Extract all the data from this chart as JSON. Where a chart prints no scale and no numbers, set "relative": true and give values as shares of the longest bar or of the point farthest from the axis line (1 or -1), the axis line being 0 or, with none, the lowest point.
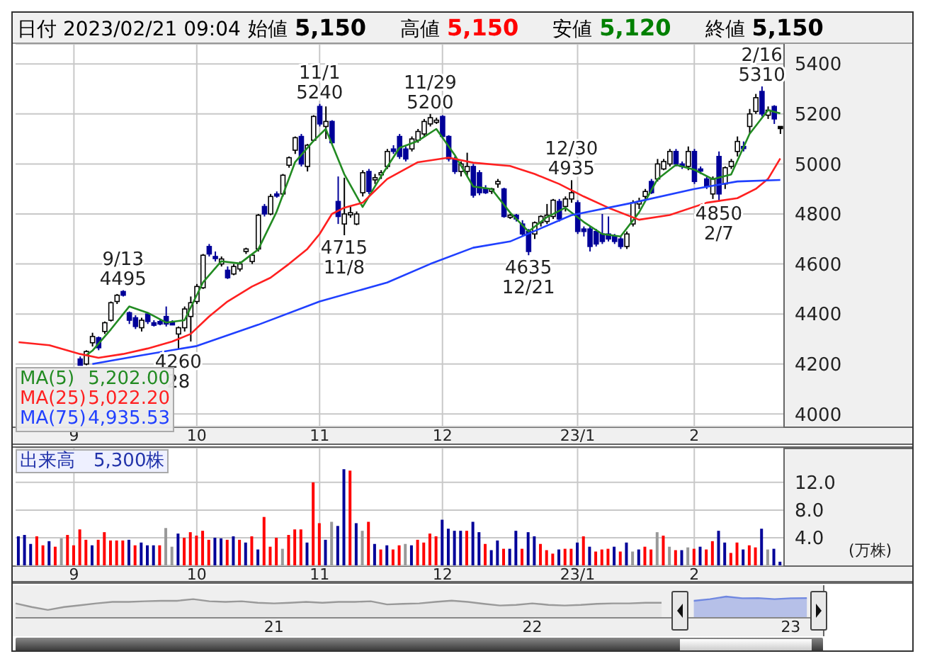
{
  "chart_data": [
    {
      "type": "candlestick",
      "title": "日付 2023/02/21 09:04",
      "subtitle": "始値 5,150 高値 5,150 安値 5,120 終値 5,150",
      "categories": [
        null,
        null,
        null,
        null,
        null,
        null,
        null,
        null,
        null,
        "9",
        null,
        null,
        null,
        null,
        null,
        null,
        null,
        null,
        null,
        null,
        null,
        null,
        null,
        null,
        null,
        null,
        null,
        null,
        null,
        "10",
        null,
        null,
        null,
        null,
        null,
        null,
        null,
        null,
        null,
        null,
        null,
        null,
        null,
        null,
        null,
        null,
        null,
        null,
        null,
        "11",
        null,
        null,
        null,
        null,
        null,
        null,
        null,
        null,
        null,
        null,
        null,
        null,
        null,
        null,
        null,
        null,
        null,
        null,
        null,
        "12",
        null,
        null,
        null,
        null,
        null,
        null,
        null,
        null,
        null,
        null,
        null,
        null,
        null,
        null,
        null,
        null,
        null,
        null,
        null,
        null,
        null,
        "23/1",
        null,
        null,
        null,
        null,
        null,
        null,
        null,
        null,
        null,
        null,
        null,
        null,
        null,
        null,
        null,
        null,
        null,
        null,
        "2",
        null,
        null,
        null,
        null,
        null,
        null,
        null,
        null,
        null,
        null,
        null,
        null,
        null,
        null
      ],
      "ohlc": [
        null,
        null,
        null,
        null,
        null,
        null,
        null,
        null,
        null,
        null,
        [
          4220,
          4230,
          4195,
          4195
        ],
        [
          4200,
          4255,
          4195,
          4250
        ],
        [
          4285,
          4325,
          4270,
          4310
        ],
        [
          4305,
          4310,
          4255,
          4265
        ],
        [
          4330,
          4370,
          4320,
          4365
        ],
        [
          4375,
          4450,
          4370,
          4445
        ],
        [
          4450,
          4480,
          4440,
          4475
        ],
        [
          4490,
          4495,
          4470,
          4475
        ],
        [
          4405,
          4410,
          4360,
          4375
        ],
        [
          4385,
          4395,
          4340,
          4350
        ],
        [
          4345,
          4385,
          4330,
          4375
        ],
        [
          4400,
          4405,
          4360,
          4370
        ],
        [
          4365,
          4375,
          4350,
          4355
        ],
        [
          4370,
          4380,
          4355,
          4360
        ],
        [
          4390,
          4430,
          4350,
          4360
        ],
        [
          4365,
          4375,
          4355,
          4360
        ],
        [
          4320,
          4350,
          4260,
          4345
        ],
        [
          4345,
          4430,
          4330,
          4420
        ],
        [
          4390,
          4470,
          4290,
          4445
        ],
        [
          4450,
          4520,
          4440,
          4510
        ],
        [
          4505,
          4640,
          4500,
          4635
        ],
        [
          4670,
          4680,
          4630,
          4640
        ],
        [
          4630,
          4650,
          4610,
          4625
        ],
        [
          4600,
          4630,
          4590,
          4620
        ],
        [
          4575,
          4590,
          4540,
          4545
        ],
        [
          4560,
          4600,
          4555,
          4590
        ],
        [
          4580,
          4610,
          4570,
          4600
        ],
        [
          4650,
          4665,
          4640,
          4660
        ],
        [
          4610,
          4640,
          4600,
          4635
        ],
        [
          4660,
          4800,
          4650,
          4795
        ],
        [
          4830,
          4840,
          4790,
          4800
        ],
        [
          4800,
          4880,
          4795,
          4870
        ],
        [
          4880,
          4890,
          4865,
          4875
        ],
        [
          4880,
          4960,
          4870,
          4955
        ],
        [
          4995,
          5030,
          4985,
          5025
        ],
        [
          5055,
          5110,
          5040,
          5105
        ],
        [
          5110,
          5120,
          4990,
          5000
        ],
        [
          4990,
          5080,
          4970,
          5075
        ],
        [
          5095,
          5195,
          5090,
          5190
        ],
        [
          5230,
          5240,
          5150,
          5160
        ],
        [
          5150,
          5230,
          5100,
          5170
        ],
        [
          5170,
          5175,
          5080,
          5085
        ],
        [
          4850,
          4950,
          4760,
          4790
        ],
        [
          4760,
          4945,
          4715,
          4800
        ],
        [
          4800,
          4830,
          4785,
          4805
        ],
        [
          4760,
          4810,
          4755,
          4800
        ],
        [
          4885,
          4975,
          4870,
          4965
        ],
        [
          4970,
          4980,
          4880,
          4890
        ],
        [
          4940,
          4960,
          4920,
          4945
        ],
        [
          4960,
          4975,
          4940,
          4965
        ],
        [
          4990,
          5060,
          4980,
          5050
        ],
        [
          5060,
          5075,
          5040,
          5050
        ],
        [
          5110,
          5120,
          5020,
          5030
        ],
        [
          5060,
          5070,
          5010,
          5020
        ],
        [
          5060,
          5110,
          5050,
          5100
        ],
        [
          5095,
          5140,
          5085,
          5130
        ],
        [
          5120,
          5180,
          5110,
          5170
        ],
        [
          5160,
          5200,
          5150,
          5185
        ],
        [
          5170,
          5185,
          5160,
          5175
        ],
        [
          5190,
          5195,
          5100,
          5110
        ],
        [
          5110,
          5115,
          5010,
          5020
        ],
        [
          5020,
          5030,
          4960,
          4970
        ],
        [
          4970,
          5010,
          4950,
          5000
        ],
        [
          4970,
          5045,
          4950,
          4990
        ],
        [
          4990,
          5000,
          4865,
          4875
        ],
        [
          4965,
          4975,
          4875,
          4885
        ],
        [
          4900,
          4915,
          4880,
          4885
        ],
        [
          4890,
          4905,
          4880,
          4900
        ],
        [
          4920,
          4940,
          4905,
          4930
        ],
        [
          4900,
          4905,
          4785,
          4790
        ],
        [
          4790,
          4800,
          4780,
          4795
        ],
        [
          4795,
          4800,
          4770,
          4780
        ],
        [
          4760,
          4775,
          4710,
          4720
        ],
        [
          4730,
          4740,
          4635,
          4650
        ],
        [
          4720,
          4770,
          4700,
          4765
        ],
        [
          4765,
          4795,
          4750,
          4790
        ],
        [
          4770,
          4840,
          4760,
          4795
        ],
        [
          4790,
          4860,
          4780,
          4855
        ],
        [
          4850,
          4860,
          4770,
          4780
        ],
        [
          4830,
          4870,
          4810,
          4860
        ],
        [
          4860,
          4935,
          4845,
          4885
        ],
        [
          4845,
          4855,
          4720,
          4730
        ],
        [
          4740,
          4750,
          4710,
          4730
        ],
        [
          4740,
          4750,
          4650,
          4670
        ],
        [
          4730,
          4740,
          4670,
          4680
        ],
        [
          4720,
          4800,
          4680,
          4690
        ],
        [
          4720,
          4790,
          4690,
          4700
        ],
        [
          4710,
          4720,
          4680,
          4690
        ],
        [
          4700,
          4710,
          4660,
          4670
        ],
        [
          4670,
          4730,
          4660,
          4720
        ],
        [
          4760,
          4855,
          4750,
          4845
        ],
        [
          4840,
          4865,
          4820,
          4850
        ],
        [
          4870,
          4900,
          4860,
          4890
        ],
        [
          4930,
          4940,
          4880,
          4885
        ],
        [
          4940,
          5020,
          4930,
          5000
        ],
        [
          4980,
          5020,
          4975,
          5010
        ],
        [
          5000,
          5060,
          4990,
          5050
        ],
        [
          5050,
          5060,
          4990,
          5000
        ],
        [
          5000,
          5010,
          4980,
          4990
        ],
        [
          4990,
          5070,
          4975,
          5050
        ],
        [
          5050,
          5060,
          4920,
          4930
        ],
        [
          4980,
          4990,
          4960,
          4975
        ],
        [
          4940,
          4950,
          4900,
          4910
        ],
        [
          4880,
          4950,
          4860,
          4940
        ],
        [
          5030,
          5050,
          4850,
          4880
        ],
        [
          4920,
          4990,
          4900,
          4985
        ],
        [
          4990,
          5020,
          4980,
          5010
        ],
        [
          5050,
          5110,
          5030,
          5090
        ],
        [
          5070,
          5090,
          5050,
          5065
        ],
        [
          5150,
          5220,
          5120,
          5200
        ],
        [
          5210,
          5280,
          5200,
          5265
        ],
        [
          5290,
          5310,
          5190,
          5200
        ],
        [
          5195,
          5230,
          5180,
          5215
        ],
        [
          5230,
          5235,
          5160,
          5180
        ],
        [
          5150,
          5150,
          5120,
          5150
        ]
      ],
      "colors": [
        null,
        null,
        null,
        null,
        null,
        null,
        null,
        null,
        null,
        null,
        "#000099",
        "#ffffff",
        "#ffffff",
        "#000099",
        "#ffffff",
        "#ffffff",
        "#ffffff",
        "#000099",
        "#000099",
        "#000099",
        "#ffffff",
        "#000099",
        "#000099",
        "#000099",
        "#000099",
        "#000099",
        "#ffffff",
        "#ffffff",
        "#ffffff",
        "#ffffff",
        "#ffffff",
        "#000099",
        "#000099",
        "#ffffff",
        "#000099",
        "#ffffff",
        "#ffffff",
        "#ffffff",
        "#ffffff",
        "#ffffff",
        "#000099",
        "#ffffff",
        "#000099",
        "#ffffff",
        "#ffffff",
        "#ffffff",
        "#000099",
        "#ffffff",
        "#ffffff",
        "#000099",
        "#ffffff",
        "#000099",
        "#000099",
        "#ffffff",
        "#ffffff",
        "#ffffff",
        "#ffffff",
        "#000099",
        "#ffffff",
        "#ffffff",
        "#ffffff",
        "#000099",
        "#000099",
        "#000099",
        "#ffffff",
        "#ffffff",
        "#ffffff",
        "#ffffff",
        "#ffffff",
        "#000099",
        "#000099",
        "#000099",
        "#ffffff",
        "#ffffff",
        "#000099",
        "#000099",
        "#000099",
        "#ffffff",
        "#ffffff",
        "#000099",
        "#ffffff",
        "#000099",
        "#000099",
        "#000099",
        "#ffffff",
        "#ffffff",
        "#ffffff",
        "#ffffff",
        "#000099",
        "#ffffff",
        "#ffffff",
        "#000099",
        "#000099",
        "#000099",
        "#000099",
        "#000099",
        "#000099",
        "#000099",
        "#000099",
        "#ffffff",
        "#ffffff",
        "#ffffff",
        "#ffffff",
        "#000099",
        "#ffffff",
        "#ffffff",
        "#ffffff",
        "#000099",
        "#000099",
        "#ffffff",
        "#000099",
        "#000099",
        "#000099",
        "#ffffff",
        "#000099",
        "#ffffff",
        "#ffffff",
        "#ffffff",
        "#000099",
        "#ffffff",
        "#ffffff",
        "#000099",
        "#ffffff",
        "#000099",
        "#000000"
      ],
      "series": [
        {
          "name": "MA(5)",
          "type": "line",
          "color": "#228b22",
          "values": [
            null,
            null,
            null,
            null,
            null,
            null,
            null,
            null,
            null,
            null,
            null,
            4235,
            4253,
            null,
            null,
            4338,
            null,
            null,
            4430,
            null,
            null,
            4405,
            null,
            null,
            4366,
            null,
            null,
            4375,
            null,
            null,
            4526,
            null,
            null,
            4611,
            null,
            null,
            4602,
            null,
            null,
            4658,
            null,
            null,
            4809,
            null,
            null,
            5007,
            null,
            null,
            5092,
            null,
            5140,
            null,
            null,
            4960,
            null,
            null,
            4828,
            null,
            null,
            4951,
            null,
            null,
            5064,
            null,
            null,
            5092,
            null,
            null,
            5140,
            null,
            null,
            5036,
            null,
            null,
            4910,
            null,
            null,
            4900,
            null,
            null,
            4806,
            null,
            null,
            4730,
            null,
            null,
            4787,
            null,
            null,
            4825,
            null,
            null,
            4768,
            null,
            null,
            4720,
            null,
            null,
            4710,
            null,
            null,
            4806,
            null,
            null,
            4939,
            null,
            null,
            4996,
            null,
            null,
            4977,
            null,
            null,
            4939,
            null,
            null,
            4958,
            null,
            null,
            5120,
            null,
            null,
            5215,
            null,
            5202
          ]
        },
        {
          "name": "MA(25)",
          "type": "line",
          "color": "#ff2020",
          "values": [
            4287,
            null,
            null,
            null,
            null,
            4275,
            null,
            null,
            null,
            null,
            4240,
            null,
            null,
            4225,
            null,
            null,
            null,
            4240,
            null,
            null,
            null,
            4262,
            null,
            null,
            null,
            4290,
            null,
            null,
            4320,
            null,
            null,
            4390,
            null,
            null,
            4450,
            null,
            null,
            null,
            4510,
            null,
            null,
            4545,
            null,
            null,
            4600,
            null,
            null,
            4660,
            null,
            4720,
            null,
            4800,
            null,
            4825,
            null,
            null,
            4845,
            null,
            null,
            null,
            4940,
            null,
            null,
            null,
            null,
            5007,
            null,
            null,
            null,
            null,
            5025,
            null,
            null,
            null,
            5005,
            null,
            null,
            null,
            null,
            null,
            4992,
            null,
            null,
            null,
            4960,
            null,
            null,
            null,
            4920,
            null,
            null,
            null,
            4870,
            null,
            null,
            null,
            4825,
            null,
            null,
            null,
            null,
            4777,
            null,
            null,
            null,
            null,
            4796,
            null,
            null,
            null,
            null,
            null,
            4845,
            null,
            null,
            null,
            null,
            4863,
            null,
            null,
            4900,
            null,
            4940,
            null,
            5022
          ]
        },
        {
          "name": "MA(75)",
          "type": "line",
          "color": "#2040ff",
          "values": [
            null,
            null,
            null,
            null,
            null,
            null,
            null,
            null,
            null,
            null,
            null,
            null,
            4200,
            null,
            null,
            null,
            null,
            null,
            null,
            null,
            4235,
            null,
            null,
            null,
            null,
            null,
            null,
            null,
            null,
            4272,
            null,
            null,
            null,
            null,
            null,
            null,
            null,
            null,
            null,
            4357,
            null,
            null,
            null,
            null,
            null,
            null,
            null,
            null,
            null,
            4450,
            null,
            null,
            null,
            null,
            null,
            null,
            null,
            null,
            null,
            null,
            4526,
            null,
            null,
            null,
            null,
            null,
            null,
            4600,
            null,
            null,
            null,
            null,
            null,
            null,
            4665,
            null,
            null,
            null,
            null,
            null,
            4690,
            null,
            null,
            null,
            null,
            null,
            null,
            null,
            null,
            null,
            4795,
            null,
            null,
            null,
            null,
            null,
            null,
            null,
            null,
            null,
            4845,
            null,
            null,
            null,
            null,
            null,
            null,
            null,
            null,
            null,
            4900,
            null,
            null,
            null,
            null,
            null,
            null,
            4930,
            null,
            null,
            null,
            null,
            null,
            null,
            4936
          ]
        }
      ],
      "ylim": [
        3950,
        5480
      ],
      "yticks": [
        4000,
        4200,
        4400,
        4600,
        4800,
        5000,
        5200,
        5400
      ],
      "grid": true,
      "legend": "bottom left",
      "annotations": [
        {
          "text": "9/13\n4495",
          "y": 4495
        },
        {
          "text": "4260\n28",
          "y": 4260
        },
        {
          "text": "11/1\n5240",
          "y": 5240
        },
        {
          "text": "4715\n11/8",
          "y": 4715
        },
        {
          "text": "11/29\n5200",
          "y": 5200
        },
        {
          "text": "4635\n12/21",
          "y": 4635
        },
        {
          "text": "12/30\n4935",
          "y": 4935
        },
        {
          "text": "4850\n2/7",
          "y": 4850
        },
        {
          "text": "2/16\n5310",
          "y": 5310
        },
        "5,202.00",
        "5,022.20",
        "4,935.53"
      ]
    },
    {
      "type": "bar",
      "title": "出来高　5,300株",
      "ylabel": "(万株)",
      "categories": [
        null,
        null,
        null,
        null,
        null,
        null,
        null,
        null,
        null,
        "9",
        null,
        null,
        null,
        null,
        null,
        null,
        null,
        null,
        null,
        null,
        null,
        null,
        null,
        null,
        null,
        null,
        null,
        null,
        null,
        "10",
        null,
        null,
        null,
        null,
        null,
        null,
        null,
        null,
        null,
        null,
        null,
        null,
        null,
        null,
        null,
        null,
        null,
        null,
        null,
        "11",
        null,
        null,
        null,
        null,
        null,
        null,
        null,
        null,
        null,
        null,
        null,
        null,
        null,
        null,
        null,
        null,
        null,
        null,
        null,
        "12",
        null,
        null,
        null,
        null,
        null,
        null,
        null,
        null,
        null,
        null,
        null,
        null,
        null,
        null,
        null,
        null,
        null,
        null,
        null,
        null,
        null,
        "23/1",
        null,
        null,
        null,
        null,
        null,
        null,
        null,
        null,
        null,
        null,
        null,
        null,
        null,
        null,
        null,
        null,
        null,
        null,
        "2",
        null,
        null,
        null,
        null,
        null,
        null,
        null,
        null,
        null,
        null,
        null,
        null,
        null,
        null
      ],
      "values": [
        4.2,
        4.4,
        3.1,
        4.2,
        2.9,
        3.5,
        2.7,
        3.9,
        4.4,
        2.9,
        5.2,
        3.7,
        2.9,
        3.7,
        4.8,
        3.6,
        3.6,
        3.6,
        3.7,
        2.9,
        3.3,
        2.9,
        2.9,
        2.9,
        5.4,
        2.7,
        4.6,
        4.0,
        4.8,
        4.3,
        5.0,
        3.7,
        4.0,
        3.9,
        3.7,
        4.2,
        3.7,
        3.3,
        4.2,
        2.3,
        7.0,
        2.7,
        4.0,
        2.4,
        4.4,
        5.2,
        5.2,
        3.3,
        12.0,
        6.1,
        3.7,
        6.3,
        5.7,
        13.9,
        13.7,
        6.1,
        5.0,
        6.3,
        3.1,
        2.3,
        2.9,
        2.3,
        2.9,
        3.1,
        2.9,
        3.7,
        3.3,
        4.6,
        4.2,
        6.6,
        5.3,
        5.0,
        5.0,
        5.0,
        6.3,
        4.8,
        3.1,
        2.2,
        3.6,
        2.4,
        2.4,
        5.0,
        2.4,
        4.8,
        4.2,
        3.1,
        2.2,
        1.7,
        2.3,
        2.4,
        2.4,
        3.3,
        4.2,
        2.7,
        2.0,
        2.3,
        2.4,
        2.7,
        2.0,
        3.3,
        2.0,
        2.3,
        2.7,
        2.3,
        4.8,
        4.3,
        2.7,
        2.2,
        2.2,
        2.6,
        2.4,
        2.7,
        2.3,
        3.5,
        5.0,
        3.3,
        1.8,
        3.3,
        2.3,
        2.9,
        2.6,
        5.3,
        2.3,
        2.4,
        0.53
      ],
      "colors": [
        "#000099",
        "#000099",
        "#000099",
        "#ff0000",
        "#ff0000",
        "#000099",
        "#ff0000",
        "#999999",
        "#ff0000",
        "#ff0000",
        "#ff0000",
        "#ff0000",
        "#000099",
        "#ff0000",
        "#ff0000",
        "#ff0000",
        "#ff0000",
        "#ff0000",
        "#000099",
        "#ff0000",
        "#000099",
        "#000099",
        "#000099",
        "#ff0000",
        "#999999",
        "#999999",
        "#000099",
        "#ff0000",
        "#ff0000",
        "#ff0000",
        "#ff0000",
        "#ff0000",
        "#000099",
        "#000099",
        "#ff0000",
        "#000099",
        "#ff0000",
        "#000099",
        "#ff0000",
        "#000099",
        "#ff0000",
        "#ff0000",
        "#ff0000",
        "#999999",
        "#ff0000",
        "#ff0000",
        "#ff0000",
        "#000099",
        "#ff0000",
        "#ff0000",
        "#000099",
        "#999999",
        "#000099",
        "#000099",
        "#ff0000",
        "#000099",
        "#999999",
        "#ff0000",
        "#000099",
        "#ff0000",
        "#000099",
        "#ff0000",
        "#ff0000",
        "#999999",
        "#000099",
        "#ff0000",
        "#ff0000",
        "#ff0000",
        "#ff0000",
        "#000099",
        "#000099",
        "#000099",
        "#000099",
        "#ff0000",
        "#000099",
        "#000099",
        "#ff0000",
        "#000099",
        "#000099",
        "#ff0000",
        "#000099",
        "#000099",
        "#ff0000",
        "#000099",
        "#000099",
        "#ff0000",
        "#ff0000",
        "#ff0000",
        "#000099",
        "#ff0000",
        "#ff0000",
        "#000099",
        "#ff0000",
        "#000099",
        "#ff0000",
        "#ff0000",
        "#ff0000",
        "#000099",
        "#ff0000",
        "#000099",
        "#999999",
        "#000099",
        "#ff0000",
        "#ff0000",
        "#999999",
        "#ff0000",
        "#999999",
        "#ff0000",
        "#000099",
        "#999999",
        "#ff0000",
        "#000099",
        "#ff0000",
        "#ff0000",
        "#000099",
        "#000099",
        "#ff0000",
        "#ff0000",
        "#000099",
        "#ff0000",
        "#ff0000",
        "#000099",
        "#999999",
        "#000099",
        "#000099"
      ],
      "ylim": [
        0,
        17
      ],
      "yticks": [
        {
          "value": 4,
          "label": "4.0"
        },
        {
          "value": 8,
          "label": "8.0"
        },
        {
          "value": 12,
          "label": "12.0"
        }
      ],
      "grid": true
    },
    {
      "type": "line",
      "relative": true,
      "categories": [
        null,
        null,
        null,
        null,
        null,
        null,
        null,
        null,
        null,
        null,
        null,
        null,
        null,
        null,
        null,
        null,
        "21",
        null,
        null,
        null,
        null,
        null,
        null,
        null,
        null,
        null,
        null,
        null,
        null,
        null,
        null,
        null,
        "22",
        null,
        null,
        null,
        null,
        null,
        null,
        null,
        null,
        null,
        null,
        null,
        null,
        null,
        null,
        null,
        "23",
        null,
        null
      ],
      "series": [
        {
          "type": "area",
          "color": "#999999",
          "values": [
            0.68,
            0.51,
            0.37,
            0.51,
            0.59,
            0.68,
            0.75,
            0.75,
            0.78,
            0.8,
            0.8,
            0.88,
            0.78,
            0.75,
            0.78,
            0.71,
            0.68,
            0.71,
            0.75,
            0.71,
            0.75,
            0.75,
            0.78,
            0.63,
            0.66,
            0.68,
            0.75,
            0.81,
            0.75,
            0.66,
            0.58,
            0.61,
            0.68,
            0.61,
            0.58,
            0.61,
            0.66,
            0.68,
            0.68,
            0.71,
            0.71,
            null,
            null,
            null,
            null,
            null,
            null,
            null,
            null,
            null,
            null
          ]
        },
        {
          "type": "area",
          "color": "#7088e0",
          "values": [
            null,
            null,
            null,
            null,
            null,
            null,
            null,
            null,
            null,
            null,
            null,
            null,
            null,
            null,
            null,
            null,
            null,
            null,
            null,
            null,
            null,
            null,
            null,
            null,
            null,
            null,
            null,
            null,
            null,
            null,
            null,
            null,
            null,
            null,
            null,
            null,
            null,
            null,
            null,
            null,
            null,
            null,
            0.8,
            0.88,
            1,
            0.92,
            0.93,
            0.88,
            0.92,
            0.93,
            null
          ]
        }
      ]
    }
  ]
}
